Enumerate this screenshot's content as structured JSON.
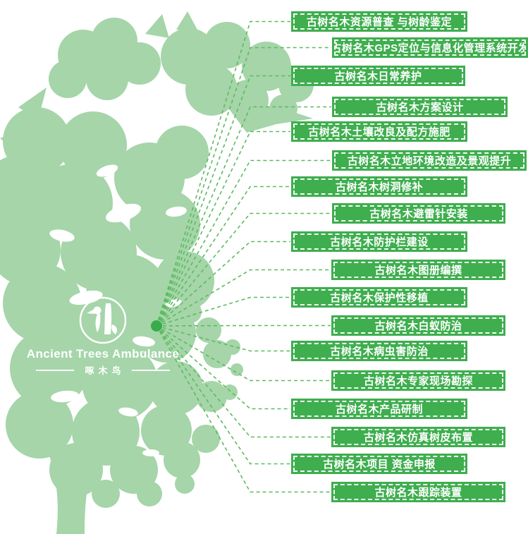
{
  "logo": {
    "title": "Ancient Trees Ambulance",
    "subtitle": "啄木鸟"
  },
  "diagram": {
    "items": [
      {
        "label": "古树名木资源普查 与树龄鉴定"
      },
      {
        "label": "古树名木GPS定位与信息化管理系统开发"
      },
      {
        "label": "古树名木日常养护"
      },
      {
        "label": "古树名木方案设计"
      },
      {
        "label": "古树名木土壤改良及配方施肥"
      },
      {
        "label": "古树名木立地环境改造及景观提升"
      },
      {
        "label": "古树名木树洞修补"
      },
      {
        "label": "古树名木避雷针安装"
      },
      {
        "label": "古树名木防护栏建设"
      },
      {
        "label": "古树名木图册编撰"
      },
      {
        "label": "古树名木保护性移植"
      },
      {
        "label": "古树名木白蚁防治"
      },
      {
        "label": "古树名木病虫害防治"
      },
      {
        "label": "古树名木专家现场勘探"
      },
      {
        "label": "古树名木产品研制"
      },
      {
        "label": "古树名木仿真树皮布置"
      },
      {
        "label": "古树名木项目 资金申报"
      },
      {
        "label": "古树名木跟踪装置"
      }
    ]
  },
  "colors": {
    "label_green": "#3EAE4E",
    "tree_green": "#A5D5A9",
    "line_green": "#5CBB5F",
    "dot_green": "#38AC4D",
    "text_white": "#FFFFFF"
  }
}
